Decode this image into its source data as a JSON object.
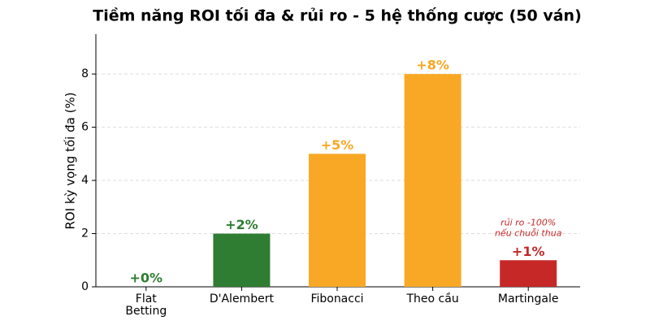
{
  "chart_data": {
    "type": "bar",
    "title": "Tiềm năng ROI tối đa & rủi ro - 5 hệ thống cược (50 ván)",
    "y_label": "ROI kỳ vọng tối đa (%)",
    "categories": [
      "Flat\nBetting",
      "D'Alembert",
      "Fibonacci",
      "Theo cầu",
      "Martingale"
    ],
    "values": [
      0,
      2,
      5,
      8,
      1
    ],
    "value_labels": [
      "+0%",
      "+2%",
      "+5%",
      "+8%",
      "+1%"
    ],
    "colors": [
      "#2e7d32",
      "#2e7d32",
      "#f9a825",
      "#f9a825",
      "#c62828"
    ],
    "annotation": "rủi ro -100%\nnếu chuỗi thua",
    "ylim": [
      0,
      9.5
    ],
    "yticks": [
      0,
      2,
      4,
      6,
      8
    ],
    "grid": true
  }
}
